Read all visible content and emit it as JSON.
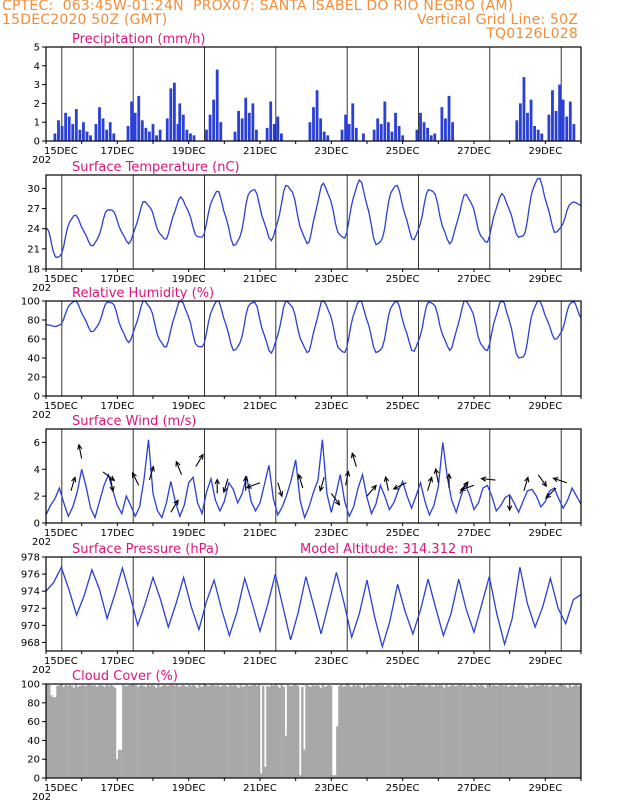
{
  "header": {
    "line1_left": "CPTEC:  063:45W-01:24N  PROX07: SANTA ISABEL DO RIO NEGRO (AM)",
    "line2_left": "15DEC2020 50Z (GMT)",
    "line2_right": "Vertical Grid Line: 50Z",
    "line3_right": "TQ0126L028"
  },
  "colors": {
    "header": "#f58d3a",
    "title": "#e0147c",
    "line": "#2a3fd6",
    "bar": "#2a3fd6",
    "cloud": "#a8a8a8"
  },
  "x_axis": {
    "labels": [
      "15DEC",
      "17DEC",
      "19DEC",
      "21DEC",
      "23DEC",
      "25DEC",
      "27DEC",
      "29DEC"
    ],
    "label_days": [
      0,
      2,
      4,
      6,
      8,
      10,
      12,
      14
    ],
    "range_days": [
      0,
      15
    ],
    "year_stub": "202"
  },
  "chart_data": [
    {
      "type": "bar",
      "title": "Precipitation (mm/h)",
      "ylim": [
        0,
        5
      ],
      "yticks": [
        0,
        1,
        2,
        3,
        4,
        5
      ],
      "x_unit": "days since 15DEC2020",
      "x": [
        0.25,
        0.35,
        0.45,
        0.55,
        0.65,
        0.75,
        0.85,
        0.95,
        1.05,
        1.15,
        1.25,
        1.4,
        1.5,
        1.6,
        1.7,
        1.8,
        1.9,
        2.3,
        2.4,
        2.5,
        2.6,
        2.7,
        2.8,
        2.9,
        3.0,
        3.1,
        3.2,
        3.4,
        3.5,
        3.6,
        3.7,
        3.75,
        3.85,
        3.95,
        4.05,
        4.15,
        4.5,
        4.6,
        4.7,
        4.8,
        4.9,
        5.3,
        5.4,
        5.5,
        5.6,
        5.7,
        5.8,
        5.9,
        6.2,
        6.3,
        6.4,
        6.5,
        6.6,
        7.4,
        7.5,
        7.6,
        7.7,
        7.8,
        7.9,
        8.3,
        8.4,
        8.5,
        8.6,
        8.7,
        8.9,
        9.2,
        9.3,
        9.4,
        9.5,
        9.6,
        9.7,
        9.8,
        9.9,
        10.0,
        10.4,
        10.5,
        10.6,
        10.7,
        10.8,
        10.9,
        11.1,
        11.2,
        11.3,
        11.4,
        13.2,
        13.3,
        13.4,
        13.5,
        13.6,
        13.7,
        13.8,
        13.9,
        14.1,
        14.2,
        14.3,
        14.4,
        14.5,
        14.6,
        14.7,
        14.8
      ],
      "values": [
        0.4,
        1.1,
        0.8,
        1.5,
        1.3,
        0.9,
        1.7,
        0.6,
        1.0,
        0.5,
        0.3,
        0.9,
        1.8,
        1.2,
        0.6,
        1.0,
        0.4,
        0.8,
        2.1,
        1.5,
        2.4,
        1.1,
        0.7,
        0.5,
        0.9,
        0.3,
        0.6,
        1.2,
        2.8,
        3.1,
        0.9,
        2.0,
        1.4,
        0.6,
        0.4,
        0.3,
        0.6,
        1.4,
        2.2,
        3.8,
        1.0,
        0.5,
        1.6,
        1.2,
        2.3,
        1.5,
        2.0,
        0.6,
        0.7,
        2.1,
        0.9,
        1.3,
        0.4,
        1.0,
        1.8,
        2.7,
        1.2,
        0.5,
        0.3,
        0.6,
        1.4,
        0.9,
        2.0,
        0.7,
        0.4,
        0.6,
        1.2,
        0.9,
        2.1,
        1.0,
        0.5,
        1.5,
        0.8,
        0.3,
        0.6,
        1.5,
        1.0,
        0.7,
        0.3,
        0.4,
        1.8,
        1.2,
        2.4,
        1.0,
        1.1,
        2.0,
        3.4,
        1.5,
        2.2,
        0.8,
        0.6,
        0.4,
        1.4,
        2.7,
        1.6,
        3.0,
        2.2,
        1.3,
        2.1,
        0.9
      ]
    },
    {
      "type": "line",
      "title": "Surface Temperature (nC)",
      "ylim": [
        18,
        32
      ],
      "yticks": [
        18,
        21,
        24,
        27,
        30
      ],
      "daily_max": [
        26,
        27,
        28,
        28.5,
        29.5,
        30,
        30.5,
        30.5,
        31,
        30.5,
        30,
        29,
        29,
        31.5,
        28
      ],
      "daily_min": [
        19.5,
        21.5,
        22,
        22.5,
        22.5,
        21.5,
        22.5,
        22,
        22.5,
        21.5,
        22.5,
        22,
        22,
        22.5,
        23.5
      ],
      "start_value": 24,
      "end_value": 27.5
    },
    {
      "type": "line",
      "title": "Relative Humidity (%)",
      "ylim": [
        0,
        100
      ],
      "yticks": [
        0,
        20,
        40,
        60,
        80,
        100
      ],
      "daily_max": [
        100,
        100,
        100,
        100,
        100,
        100,
        100,
        100,
        100,
        100,
        100,
        100,
        100,
        100,
        100
      ],
      "daily_min": [
        73,
        68,
        58,
        52,
        50,
        48,
        47,
        47,
        45,
        45,
        48,
        50,
        48,
        38,
        60
      ],
      "start_value": 75,
      "end_value": 83
    },
    {
      "type": "line",
      "title": "Surface Wind (m/s)",
      "ylim": [
        0,
        7
      ],
      "yticks": [
        0,
        2,
        4,
        6
      ],
      "speed": [
        0.6,
        1.3,
        1.8,
        2.6,
        1.5,
        0.5,
        1.2,
        2.3,
        4.0,
        2.7,
        1.1,
        0.4,
        1.6,
        2.8,
        3.6,
        2.4,
        1.3,
        0.7,
        2.0,
        1.3,
        0.5,
        1.2,
        3.3,
        6.2,
        2.2,
        0.9,
        0.4,
        1.5,
        3.1,
        1.6,
        0.5,
        1.3,
        3.0,
        3.4,
        1.5,
        0.7,
        2.3,
        3.3,
        1.7,
        0.9,
        1.6,
        3.0,
        2.5,
        1.5,
        2.2,
        3.5,
        1.6,
        0.9,
        1.5,
        2.9,
        4.3,
        1.8,
        0.6,
        1.2,
        2.1,
        3.2,
        4.7,
        1.7,
        0.4,
        1.2,
        2.3,
        3.2,
        6.2,
        2.2,
        0.8,
        2.1,
        3.6,
        1.6,
        0.5,
        1.2,
        2.6,
        3.6,
        1.9,
        0.7,
        1.4,
        2.8,
        2.0,
        1.0,
        1.5,
        2.4,
        3.1,
        2.0,
        1.1,
        2.0,
        3.0,
        1.6,
        0.6,
        1.3,
        2.7,
        6.0,
        3.4,
        1.7,
        0.8,
        1.9,
        2.9,
        2.1,
        1.0,
        1.5,
        2.6,
        2.8,
        2.0,
        0.9,
        1.3,
        1.9,
        2.1,
        1.5,
        0.8,
        1.6,
        2.4,
        2.5,
        2.0,
        1.2,
        1.6,
        2.4,
        2.6,
        1.8,
        1.1,
        1.7,
        2.6,
        2.0,
        1.4
      ],
      "arrows": [
        {
          "day": 0.7,
          "speed": 2.4,
          "dx": 0.3,
          "dy": -1
        },
        {
          "day": 1.0,
          "speed": 4.8,
          "dx": -0.2,
          "dy": -1
        },
        {
          "day": 1.6,
          "speed": 3.8,
          "dx": 0.8,
          "dy": 0.6
        },
        {
          "day": 1.8,
          "speed": 3.4,
          "dx": 0.2,
          "dy": 1
        },
        {
          "day": 2.6,
          "speed": 2.8,
          "dx": -0.5,
          "dy": -1
        },
        {
          "day": 2.9,
          "speed": 3.2,
          "dx": 0.3,
          "dy": -1
        },
        {
          "day": 3.5,
          "speed": 0.8,
          "dx": 0.6,
          "dy": -1
        },
        {
          "day": 3.8,
          "speed": 3.6,
          "dx": -0.4,
          "dy": -1
        },
        {
          "day": 4.2,
          "speed": 4.2,
          "dx": 0.6,
          "dy": -1
        },
        {
          "day": 4.8,
          "speed": 2.2,
          "dx": 0.0,
          "dy": -1
        },
        {
          "day": 5.1,
          "speed": 3.3,
          "dx": -0.3,
          "dy": 1
        },
        {
          "day": 5.6,
          "speed": 2.4,
          "dx": 0.0,
          "dy": -1
        },
        {
          "day": 6.0,
          "speed": 3.0,
          "dx": -0.8,
          "dy": 0.3
        },
        {
          "day": 6.5,
          "speed": 3.0,
          "dx": 0.3,
          "dy": 1
        },
        {
          "day": 7.2,
          "speed": 2.6,
          "dx": -0.3,
          "dy": -1
        },
        {
          "day": 7.8,
          "speed": 3.4,
          "dx": -0.3,
          "dy": 1
        },
        {
          "day": 8.0,
          "speed": 2.2,
          "dx": 0.5,
          "dy": 0.7
        },
        {
          "day": 8.4,
          "speed": 2.8,
          "dx": 0.2,
          "dy": -1
        },
        {
          "day": 8.7,
          "speed": 4.2,
          "dx": -0.3,
          "dy": -1
        },
        {
          "day": 9.0,
          "speed": 2.0,
          "dx": 0.6,
          "dy": -0.7
        },
        {
          "day": 9.6,
          "speed": 2.4,
          "dx": -0.2,
          "dy": -1
        },
        {
          "day": 10.1,
          "speed": 3.0,
          "dx": -0.8,
          "dy": 0.4
        },
        {
          "day": 10.7,
          "speed": 2.4,
          "dx": 0.3,
          "dy": -1
        },
        {
          "day": 11.0,
          "speed": 3.0,
          "dx": -0.2,
          "dy": -1
        },
        {
          "day": 11.3,
          "speed": 2.6,
          "dx": 0.0,
          "dy": -1
        },
        {
          "day": 11.6,
          "speed": 2.2,
          "dx": 0.5,
          "dy": -0.7
        },
        {
          "day": 12.0,
          "speed": 2.8,
          "dx": -0.9,
          "dy": 0.3
        },
        {
          "day": 12.6,
          "speed": 3.2,
          "dx": -1,
          "dy": -0.1
        },
        {
          "day": 13.0,
          "speed": 2.0,
          "dx": 0.0,
          "dy": 1
        },
        {
          "day": 13.4,
          "speed": 2.4,
          "dx": 0.3,
          "dy": -1
        },
        {
          "day": 13.8,
          "speed": 3.6,
          "dx": 0.5,
          "dy": 0.7
        },
        {
          "day": 14.3,
          "speed": 2.6,
          "dx": -0.6,
          "dy": 0.6
        },
        {
          "day": 14.6,
          "speed": 3.0,
          "dx": -0.9,
          "dy": -0.3
        }
      ]
    },
    {
      "type": "line",
      "title": "Surface Pressure (hPa)",
      "annotation": "Model Altitude: 314.312 m",
      "ylim": [
        967,
        978
      ],
      "yticks": [
        968,
        970,
        972,
        974,
        976,
        978
      ],
      "values": [
        974.0,
        975.0,
        976.8,
        974.2,
        971.2,
        973.5,
        976.5,
        974.2,
        970.8,
        973.6,
        976.7,
        973.5,
        970.0,
        972.6,
        975.6,
        973.0,
        969.8,
        972.5,
        975.6,
        972.2,
        969.5,
        972.8,
        975.3,
        971.8,
        968.8,
        971.6,
        975.5,
        972.5,
        969.3,
        972.4,
        976.0,
        972.2,
        968.3,
        971.5,
        975.7,
        972.4,
        969.0,
        972.6,
        976.2,
        972.6,
        968.6,
        971.4,
        975.3,
        971.0,
        967.5,
        970.5,
        974.8,
        971.6,
        969.0,
        971.8,
        975.4,
        972.0,
        968.8,
        971.4,
        975.4,
        971.8,
        969.2,
        972.4,
        975.7,
        971.3,
        967.8,
        970.8,
        976.8,
        972.5,
        969.8,
        972.2,
        975.5,
        972.0,
        970.2,
        973.0
      ],
      "end_value": 973.6
    },
    {
      "type": "bar",
      "title": "Cloud Cover (%)",
      "ylim": [
        0,
        100
      ],
      "yticks": [
        0,
        20,
        40,
        60,
        80,
        100
      ],
      "baseline_values": [
        99,
        99,
        98,
        99,
        97,
        98,
        99,
        98,
        97,
        99,
        98,
        99,
        98,
        96,
        99,
        97,
        98,
        99,
        98,
        98
      ],
      "dips": [
        {
          "day": 0.1,
          "value": 88
        },
        {
          "day": 0.2,
          "value": 86
        },
        {
          "day": 2.0,
          "value": 20
        },
        {
          "day": 2.05,
          "value": 30
        },
        {
          "day": 6.0,
          "value": 5
        },
        {
          "day": 6.1,
          "value": 12
        },
        {
          "day": 6.7,
          "value": 45
        },
        {
          "day": 7.1,
          "value": 3
        },
        {
          "day": 7.2,
          "value": 30
        },
        {
          "day": 8.05,
          "value": 3
        },
        {
          "day": 8.15,
          "value": 55
        }
      ]
    }
  ]
}
